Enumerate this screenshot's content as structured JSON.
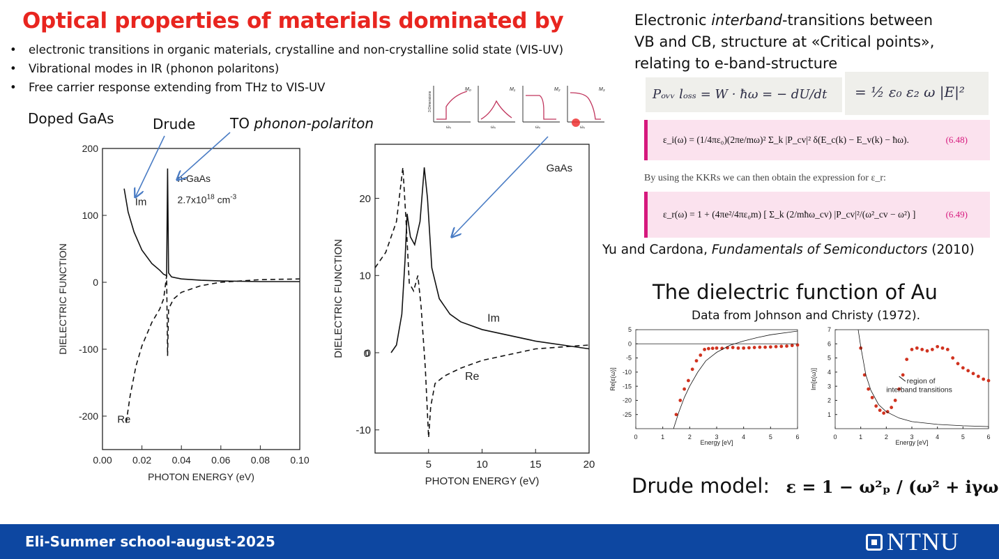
{
  "slide": {
    "title": "Optical properties of materials dominated by",
    "bullets": [
      "electronic transitions in organic materials, crystalline and non-crystalline solid state (VIS-UV)",
      "Vibrational modes in IR (phonon polaritons)",
      "Free carrier response extending from THz to VIS-UV"
    ],
    "bullet_glyph": "•"
  },
  "left_panel": {
    "doped_label": "Doped GaAs",
    "drude_label": "Drude",
    "to_label_prefix": "TO ",
    "to_label_italic": "phonon-polariton"
  },
  "right_panel": {
    "heading_line1_pre": "Electronic ",
    "heading_line1_italic": "interband",
    "heading_line1_post": "-transitions between",
    "heading_line2": "VB and CB, structure at «Critical points»,",
    "heading_line3": "relating to e-band-structure",
    "handwritten_left": "Pₒᵥᵥ lₒₛₛ = W · ħω = − dU/dt",
    "handwritten_right": "= ½ ε₀ ε₂ ω |E|²",
    "eq1": "ε_i(ω) = (1/4πε₀)(2πe/mω)² Σ_k |P_cv|² δ(E_c(k) − E_v(k) − ħω).",
    "eq1_number": "(6.48)",
    "kkr_text": "By using the KKRs we can then obtain the expression for ε_r:",
    "eq2": "ε_r(ω) = 1 + (4πe²/4πε₀m) [ Σ_k (2/mħω_cv) |P_cv|²/(ω²_cv − ω²) ]",
    "eq2_number": "(6.49)",
    "citation_pre": "Yu and Cardona, ",
    "citation_italic": "Fundamentals of Semiconductors",
    "citation_post": " (2010)",
    "au_title": "The dielectric function of Au",
    "au_subtitle": "Data from Johnson and Christy (1972).",
    "drude_label": "Drude model:",
    "drude_formula": "ε = 1 − ω²ₚ / (ω² + iγω),"
  },
  "critical_points": [
    "M₀",
    "M₁",
    "M₂",
    "M₃"
  ],
  "critical_points_ylabel": "3 Dimensions",
  "critical_points_xlabel": "ω₀",
  "footer": {
    "school": "Eli-Summer school-august-2025",
    "logo": "NTNU"
  },
  "chart_data": [
    {
      "type": "line",
      "title": "",
      "xlabel": "PHOTON ENERGY (eV)",
      "ylabel": "DIELECTRIC FUNCTION",
      "xlim": [
        0.0,
        0.1
      ],
      "ylim": [
        -250,
        200
      ],
      "x_ticks": [
        "0.00",
        "0.02",
        "0.04",
        "0.06",
        "0.08",
        "0.10"
      ],
      "y_ticks": [
        "200",
        "100",
        "0",
        "-100",
        "-200"
      ],
      "annotations": [
        "n-GaAs",
        "2.7x10",
        "18",
        " cm",
        "-3"
      ],
      "series": [
        {
          "name": "Im",
          "style": "solid",
          "x": [
            0.011,
            0.013,
            0.016,
            0.02,
            0.025,
            0.029,
            0.031,
            0.0325,
            0.033,
            0.0335,
            0.035,
            0.04,
            0.05,
            0.06,
            0.08,
            0.1
          ],
          "y": [
            140,
            105,
            75,
            48,
            28,
            18,
            12,
            10,
            170,
            14,
            8,
            5,
            3,
            2,
            1,
            1
          ]
        },
        {
          "name": "Re",
          "style": "dashed",
          "x": [
            0.012,
            0.014,
            0.017,
            0.02,
            0.025,
            0.029,
            0.031,
            0.0325,
            0.033,
            0.0335,
            0.036,
            0.04,
            0.05,
            0.06,
            0.08,
            0.1
          ],
          "y": [
            -210,
            -170,
            -125,
            -95,
            -60,
            -40,
            -25,
            10,
            -110,
            -40,
            -25,
            -15,
            -5,
            0,
            4,
            5
          ]
        }
      ]
    },
    {
      "type": "line",
      "title": "",
      "xlabel": "PHOTON ENERGY (eV)",
      "ylabel": "DIELECTRIC FUNCTION",
      "xlim": [
        0,
        20
      ],
      "ylim": [
        -13,
        27
      ],
      "x_ticks": [
        "5",
        "10",
        "15",
        "20"
      ],
      "y_ticks": [
        "20",
        "10",
        "0",
        "-10"
      ],
      "annotations": [
        "GaAs"
      ],
      "series": [
        {
          "name": "Im",
          "style": "solid",
          "x": [
            1.5,
            2.0,
            2.5,
            2.8,
            3.0,
            3.3,
            3.7,
            4.2,
            4.6,
            4.9,
            5.3,
            6.0,
            7.0,
            8.0,
            10.0,
            15.0,
            20.0
          ],
          "y": [
            0,
            1,
            5,
            12,
            18,
            15,
            14,
            17,
            24,
            20,
            11,
            7,
            5,
            4,
            3,
            1.5,
            0.5
          ]
        },
        {
          "name": "Re",
          "style": "dashed",
          "x": [
            0,
            1.0,
            2.0,
            2.6,
            2.9,
            3.2,
            3.6,
            4.0,
            4.3,
            4.7,
            5.0,
            5.2,
            5.6,
            6.5,
            8.0,
            10.0,
            15.0,
            20.0
          ],
          "y": [
            11,
            13,
            17,
            24,
            17,
            9,
            8,
            10,
            6,
            -2,
            -11,
            -7,
            -4,
            -3,
            -2,
            -1,
            0.5,
            1
          ]
        }
      ]
    },
    {
      "type": "scatter",
      "title": "",
      "xlabel": "Energy [eV]",
      "ylabel": "Re[ε(ω)]",
      "xlim": [
        0,
        6
      ],
      "ylim": [
        -30,
        5
      ],
      "x_ticks": [
        "0",
        "1",
        "2",
        "3",
        "4",
        "5",
        "6"
      ],
      "y_ticks": [
        "5",
        "0",
        "-5",
        "-10",
        "-15",
        "-20",
        "-25"
      ],
      "series": [
        {
          "name": "data",
          "style": "points",
          "x": [
            1.5,
            1.65,
            1.8,
            1.95,
            2.1,
            2.25,
            2.4,
            2.55,
            2.7,
            2.85,
            3.0,
            3.2,
            3.4,
            3.6,
            3.8,
            4.0,
            4.2,
            4.4,
            4.6,
            4.8,
            5.0,
            5.2,
            5.4,
            5.6,
            5.8,
            6.0
          ],
          "y": [
            -25,
            -20,
            -16,
            -13,
            -9,
            -6,
            -4,
            -2,
            -1.7,
            -1.6,
            -1.5,
            -1.6,
            -1.4,
            -1.3,
            -1.5,
            -1.5,
            -1.4,
            -1.3,
            -1.2,
            -1.2,
            -1.1,
            -1.0,
            -0.9,
            -0.8,
            -0.6,
            -0.4
          ]
        },
        {
          "name": "drude",
          "style": "thin",
          "x": [
            1.4,
            1.6,
            1.8,
            2.0,
            2.3,
            2.6,
            3.0,
            3.5,
            4.0,
            4.5,
            5.0,
            6.0
          ],
          "y": [
            -30,
            -24,
            -19,
            -15,
            -10,
            -6,
            -3,
            -0.5,
            1.0,
            2.2,
            3.2,
            4.5
          ]
        }
      ]
    },
    {
      "type": "scatter",
      "title": "",
      "xlabel": "Energy [eV]",
      "ylabel": "Im[ε(ω)]",
      "xlim": [
        0,
        6
      ],
      "ylim": [
        0,
        7
      ],
      "x_ticks": [
        "0",
        "1",
        "2",
        "3",
        "4",
        "5",
        "6"
      ],
      "y_ticks": [
        "7",
        "6",
        "5",
        "4",
        "3",
        "2",
        "1"
      ],
      "annotations": [
        "region of",
        "interband transitions"
      ],
      "series": [
        {
          "name": "data",
          "style": "points",
          "x": [
            1.0,
            1.15,
            1.3,
            1.45,
            1.6,
            1.75,
            1.9,
            2.05,
            2.2,
            2.35,
            2.5,
            2.65,
            2.8,
            3.0,
            3.2,
            3.4,
            3.6,
            3.8,
            4.0,
            4.2,
            4.4,
            4.6,
            4.8,
            5.0,
            5.2,
            5.4,
            5.6,
            5.8,
            6.0
          ],
          "y": [
            5.7,
            3.8,
            2.8,
            2.2,
            1.6,
            1.3,
            1.1,
            1.2,
            1.5,
            2.0,
            2.8,
            3.8,
            4.9,
            5.6,
            5.7,
            5.6,
            5.5,
            5.6,
            5.8,
            5.7,
            5.6,
            5.0,
            4.6,
            4.3,
            4.1,
            3.9,
            3.7,
            3.5,
            3.4
          ]
        },
        {
          "name": "drude",
          "style": "thin",
          "x": [
            0.9,
            1.0,
            1.2,
            1.4,
            1.7,
            2.0,
            2.5,
            3.0,
            4.0,
            5.0,
            6.0
          ],
          "y": [
            7.2,
            5.8,
            3.8,
            2.7,
            1.7,
            1.2,
            0.75,
            0.5,
            0.3,
            0.2,
            0.15
          ]
        }
      ]
    }
  ],
  "colors": {
    "title_red": "#e8251f",
    "blue_arrow": "#4a7cc4",
    "data_red": "#d0321f",
    "eq_pink": "#fbe2ee",
    "eq_border": "#d6187d",
    "footer_blue": "#0d47a1"
  }
}
